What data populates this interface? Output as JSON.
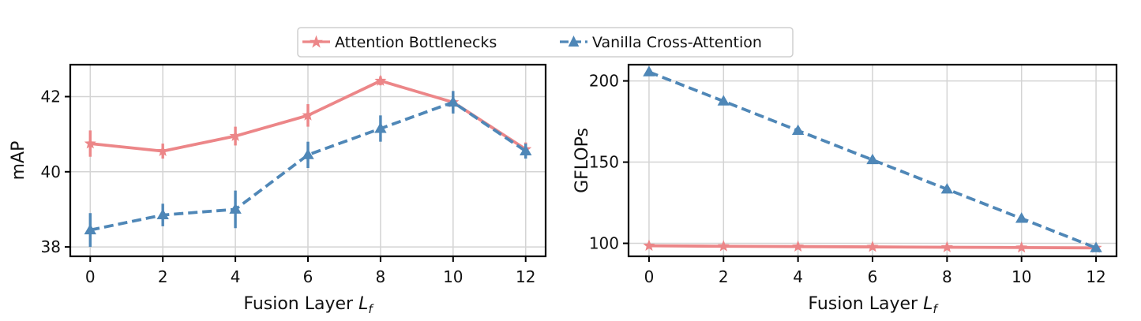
{
  "legend": {
    "items": [
      {
        "label": "Attention Bottlenecks",
        "color": "#ec8688",
        "marker": "star",
        "dash": "solid"
      },
      {
        "label": "Vanilla Cross-Attention",
        "color": "#4f87b7",
        "marker": "triangle",
        "dash": "dashed"
      }
    ]
  },
  "chart_data": [
    {
      "type": "line",
      "x_tick_labels": [
        "0",
        "2",
        "4",
        "6",
        "8",
        "10",
        "12"
      ],
      "y_tick_labels": [
        "38",
        "40",
        "42"
      ],
      "xlabel": "Fusion Layer ",
      "xlabel_var": "L",
      "xlabel_sub": "f",
      "ylabel": "mAP",
      "ylim": [
        37.75,
        42.85
      ],
      "xlim": [
        -0.55,
        12.55
      ],
      "grid": true,
      "series": [
        {
          "name": "Attention Bottlenecks",
          "x": [
            0,
            2,
            4,
            6,
            8,
            10,
            12
          ],
          "values": [
            40.75,
            40.55,
            40.95,
            41.5,
            42.42,
            41.85,
            40.6
          ],
          "error": [
            0.35,
            0.2,
            0.25,
            0.3,
            0.12,
            0.25,
            0.18
          ]
        },
        {
          "name": "Vanilla Cross-Attention",
          "x": [
            0,
            2,
            4,
            6,
            8,
            10,
            12
          ],
          "values": [
            38.45,
            38.85,
            39.0,
            40.45,
            41.15,
            41.85,
            40.55
          ],
          "error": [
            0.45,
            0.3,
            0.5,
            0.35,
            0.35,
            0.3,
            0.2
          ]
        }
      ]
    },
    {
      "type": "line",
      "x_tick_labels": [
        "0",
        "2",
        "4",
        "6",
        "8",
        "10",
        "12"
      ],
      "y_tick_labels": [
        "100",
        "150",
        "200"
      ],
      "xlabel": "Fusion Layer ",
      "xlabel_var": "L",
      "xlabel_sub": "f",
      "ylabel": "GFLOPs",
      "ylim": [
        92,
        210
      ],
      "xlim": [
        -0.55,
        12.55
      ],
      "grid": true,
      "series": [
        {
          "name": "Attention Bottlenecks",
          "x": [
            0,
            2,
            4,
            6,
            8,
            10,
            12
          ],
          "values": [
            98.5,
            98.2,
            98.0,
            97.8,
            97.6,
            97.4,
            97.2
          ]
        },
        {
          "name": "Vanilla Cross-Attention",
          "x": [
            0,
            2,
            4,
            6,
            8,
            10,
            12
          ],
          "values": [
            205.5,
            187.5,
            169.4,
            151.4,
            133.3,
            115.3,
            97.2
          ]
        }
      ]
    }
  ]
}
